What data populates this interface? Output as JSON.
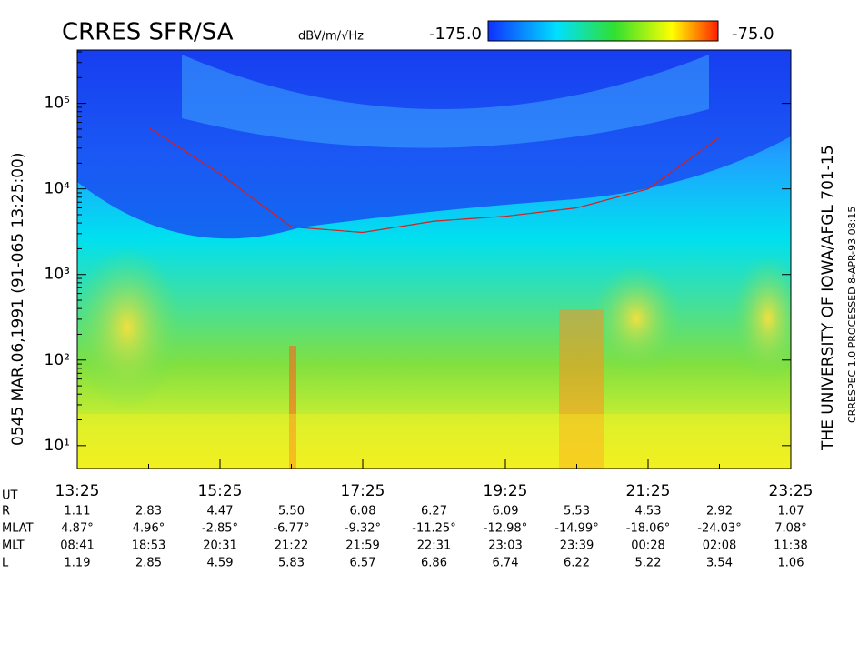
{
  "chart_data": {
    "type": "spectrogram",
    "title": "CRRES SFR/SA",
    "colorbar": {
      "unit": "dBV/m/√Hz",
      "lim": [
        {
          "value": -175,
          "label": "-175.0"
        },
        {
          "value": -75,
          "label": "-75.0"
        }
      ]
    },
    "left_label": "0545   MAR.06,1991   (91-065 13:25:00)",
    "right_label": "THE UNIVERSITY OF IOWA/AFGL 701-15",
    "right_small_label": "CRRESPEC 1.0   PROCESSED   8-APR-93   08:15",
    "ylim": [
      5.4,
      420000
    ],
    "log_y": true,
    "yticks": [
      {
        "value": 10,
        "label": "10¹"
      },
      {
        "value": 100,
        "label": "10²"
      },
      {
        "value": 1000,
        "label": "10³"
      },
      {
        "value": 10000,
        "label": "10⁴"
      },
      {
        "value": 100000,
        "label": "10⁵"
      }
    ],
    "xlim": [
      13.4167,
      23.4167
    ],
    "xticks": [
      {
        "value": 13.4167,
        "label": "13:25"
      },
      {
        "value": 15.4167,
        "label": "15:25"
      },
      {
        "value": 17.4167,
        "label": "17:25"
      },
      {
        "value": 19.4167,
        "label": "19:25"
      },
      {
        "value": 21.4167,
        "label": "21:25"
      },
      {
        "value": 23.4167,
        "label": "23:25"
      }
    ],
    "series": [
      {
        "color": "#d02020",
        "x": [
          14.4167,
          15.4167,
          16.4167,
          17.4167,
          18.4167,
          19.4167,
          20.4167,
          21.4167,
          22.4167
        ],
        "values": [
          52000,
          15000,
          3600,
          3100,
          4200,
          4800,
          6000,
          10000,
          40000
        ]
      }
    ],
    "ephemeris": {
      "axis_label": "UT",
      "rows": [
        {
          "label": "R",
          "values": [
            "1.11",
            "2.83",
            "4.47",
            "5.50",
            "6.08",
            "6.27",
            "6.09",
            "5.53",
            "4.53",
            "2.92",
            "1.07"
          ]
        },
        {
          "label": "MLAT",
          "values": [
            "4.87°",
            "4.96°",
            "-2.85°",
            "-6.77°",
            "-9.32°",
            "-11.25°",
            "-12.98°",
            "-14.99°",
            "-18.06°",
            "-24.03°",
            "7.08°"
          ]
        },
        {
          "label": "MLT",
          "values": [
            "08:41",
            "18:53",
            "20:31",
            "21:22",
            "21:59",
            "22:31",
            "23:03",
            "23:39",
            "00:28",
            "02:08",
            "11:38"
          ]
        },
        {
          "label": "L",
          "values": [
            "1.19",
            "2.85",
            "4.59",
            "5.83",
            "6.57",
            "6.86",
            "6.74",
            "6.22",
            "5.22",
            "3.54",
            "1.06"
          ]
        }
      ]
    }
  }
}
